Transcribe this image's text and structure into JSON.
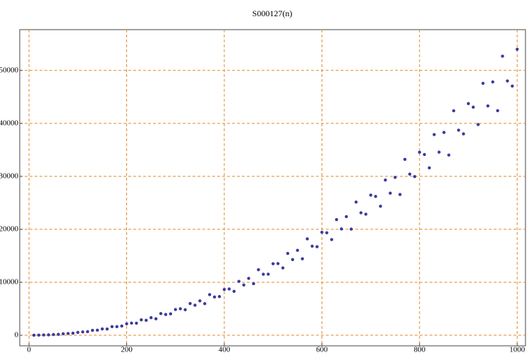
{
  "chart_data": {
    "type": "scatter",
    "title": "S000127(n)",
    "x": [
      10,
      20,
      30,
      40,
      50,
      60,
      70,
      80,
      90,
      100,
      110,
      120,
      130,
      140,
      150,
      160,
      170,
      180,
      190,
      200,
      210,
      220,
      230,
      240,
      250,
      260,
      270,
      280,
      290,
      300,
      310,
      320,
      330,
      340,
      350,
      360,
      370,
      380,
      390,
      400,
      410,
      420,
      430,
      440,
      450,
      460,
      470,
      480,
      490,
      500,
      510,
      520,
      530,
      540,
      550,
      560,
      570,
      580,
      590,
      600,
      610,
      620,
      630,
      640,
      650,
      660,
      670,
      680,
      690,
      700,
      710,
      720,
      730,
      740,
      750,
      760,
      770,
      780,
      790,
      800,
      810,
      820,
      830,
      840,
      850,
      860,
      870,
      880,
      890,
      900,
      910,
      920,
      930,
      940,
      950,
      960,
      970,
      980,
      990,
      1000
    ],
    "series": [
      {
        "color": "#3a3a9c",
        "values": [
          5,
          19,
          50,
          78,
          133,
          166,
          274,
          320,
          389,
          540,
          629,
          677,
          930,
          960,
          1193,
          1178,
          1618,
          1620,
          1733,
          2160,
          2293,
          2275,
          2910,
          2822,
          3313,
          3110,
          4082,
          3920,
          4037,
          4860,
          4997,
          4813,
          5990,
          5664,
          6493,
          5962,
          7666,
          7220,
          7301,
          8640,
          8741,
          8291,
          10170,
          9486,
          10733,
          9734,
          12370,
          11520,
          11525,
          13500,
          13525,
          12709,
          15450,
          14288,
          16033,
          14426,
          18194,
          16820,
          16709,
          19440,
          19349,
          18067,
          21830,
          20070,
          22393,
          20038,
          25138,
          23120,
          22853,
          26460,
          26213,
          24365,
          29310,
          26832,
          29813,
          26570,
          33202,
          30420,
          29957,
          34560,
          34117,
          31603,
          37890,
          34574,
          38293,
          34022,
          42386,
          38720,
          38021,
          43740,
          43061,
          39781,
          47570,
          43296,
          47833,
          42394,
          52690,
          48020,
          47045,
          54000
        ]
      }
    ],
    "xlim": [
      -19,
      1017
    ],
    "ylim": [
      -2000,
      57700
    ],
    "xticks": [
      0,
      200,
      400,
      600,
      800,
      1000
    ],
    "yticks": [
      0,
      10000,
      20000,
      30000,
      40000,
      50000
    ],
    "grid": true
  }
}
